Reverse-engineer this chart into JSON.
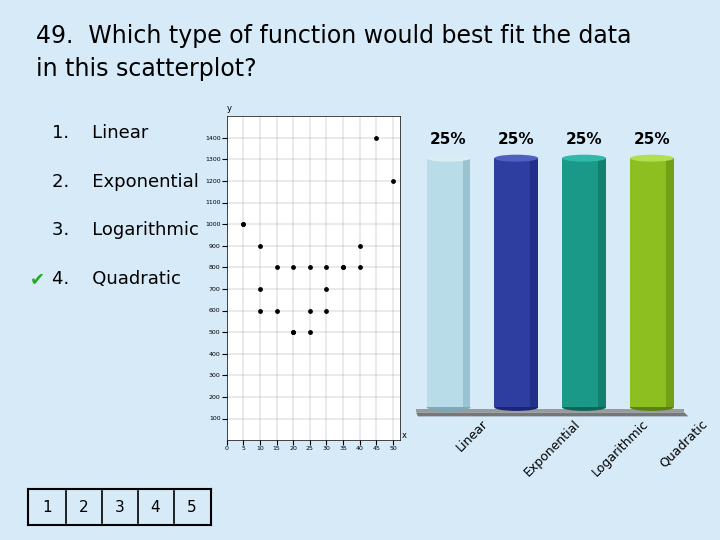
{
  "title_line1": "49.  Which type of function would best fit the data",
  "title_line2": "in this scatterplot?",
  "title_fontsize": 17,
  "background_color": "#d6eaf8",
  "options": [
    "1.    Linear",
    "2.    Exponential",
    "3.    Logarithmic",
    "4.    Quadratic"
  ],
  "options_fontsize": 13,
  "bar_categories": [
    "Linear",
    "Exponential",
    "Logarithmic",
    "Quadratic"
  ],
  "bar_values": [
    25,
    25,
    25,
    25
  ],
  "bar_colors": [
    "#b8dde8",
    "#2e3da0",
    "#1a9988",
    "#8dbf20"
  ],
  "bar_dark_colors": [
    "#7aaabb",
    "#1a2575",
    "#0d6655",
    "#5a8010"
  ],
  "bar_light_colors": [
    "#d8eef5",
    "#5060c0",
    "#30b8a8",
    "#b0df50"
  ],
  "bar_labels": [
    "25%",
    "25%",
    "25%",
    "25%"
  ],
  "bar_label_fontsize": 11,
  "axis_label_fontsize": 9,
  "axis_label_rotation": 45,
  "nav_buttons": [
    "1",
    "2",
    "3",
    "4",
    "5"
  ],
  "checkmark_color": "#22aa22",
  "scatter_x": [
    5,
    10,
    15,
    20,
    25,
    30,
    35,
    40,
    45,
    50,
    10,
    15,
    20,
    25,
    30,
    35,
    5,
    10,
    20,
    25,
    30,
    40
  ],
  "scatter_y": [
    1000,
    900,
    800,
    800,
    800,
    800,
    800,
    800,
    1400,
    1200,
    600,
    600,
    500,
    500,
    600,
    800,
    1000,
    700,
    500,
    600,
    700,
    900
  ]
}
